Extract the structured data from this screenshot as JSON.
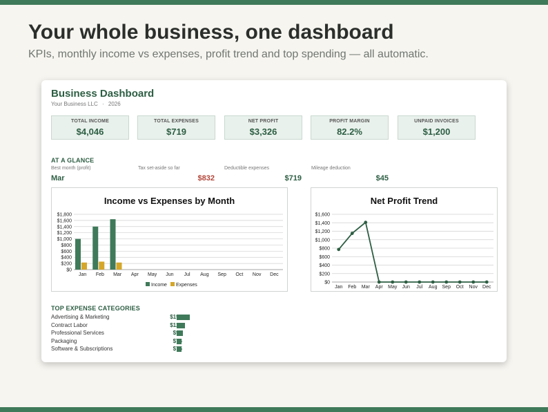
{
  "hero": {
    "headline": "Your whole business, one dashboard",
    "subheadline": "KPIs, monthly income vs expenses, profit trend and top spending — all automatic."
  },
  "dashboard": {
    "title": "Business Dashboard",
    "company": "Your Business LLC",
    "separator": "·",
    "year": "2026"
  },
  "kpis": [
    {
      "label": "TOTAL INCOME",
      "value": "$4,046"
    },
    {
      "label": "TOTAL EXPENSES",
      "value": "$719"
    },
    {
      "label": "NET PROFIT",
      "value": "$3,326"
    },
    {
      "label": "PROFIT MARGIN",
      "value": "82.2%"
    },
    {
      "label": "UNPAID INVOICES",
      "value": "$1,200"
    }
  ],
  "glance": {
    "title": "AT A GLANCE",
    "items": [
      {
        "label": "Best month (profit)",
        "value": "Mar"
      },
      {
        "label": "Tax set-aside so far",
        "value": "$832"
      },
      {
        "label": "Deductible expenses",
        "value": "$719"
      },
      {
        "label": "Mileage deduction",
        "value": "$45"
      }
    ]
  },
  "colors": {
    "accent": "#3f7a5a",
    "dark_green": "#2d5e43",
    "income": "#3f7a5a",
    "expenses": "#d4a62a",
    "tax_red": "#b2463a"
  },
  "chart_data": [
    {
      "type": "bar",
      "title": "Income vs Expenses by Month",
      "categories": [
        "Jan",
        "Feb",
        "Mar",
        "Apr",
        "May",
        "Jun",
        "Jul",
        "Aug",
        "Sep",
        "Oct",
        "Nov",
        "Dec"
      ],
      "series": [
        {
          "name": "Income",
          "values": [
            1000,
            1400,
            1640,
            0,
            0,
            0,
            0,
            0,
            0,
            0,
            0,
            0
          ]
        },
        {
          "name": "Expenses",
          "values": [
            230,
            260,
            230,
            0,
            0,
            0,
            0,
            0,
            0,
            0,
            0,
            0
          ]
        }
      ],
      "yticks": [
        "$0",
        "$200",
        "$400",
        "$600",
        "$800",
        "$1,000",
        "$1,200",
        "$1,400",
        "$1,600",
        "$1,800"
      ],
      "ylim": [
        0,
        1800
      ],
      "legend": "bottom",
      "grid": true
    },
    {
      "type": "line",
      "title": "Net Profit Trend",
      "categories": [
        "Jan",
        "Feb",
        "Mar",
        "Apr",
        "May",
        "Jun",
        "Jul",
        "Aug",
        "Sep",
        "Oct",
        "Nov",
        "Dec"
      ],
      "series": [
        {
          "values": [
            770,
            1150,
            1410,
            0,
            0,
            0,
            0,
            0,
            0,
            0,
            0,
            0
          ]
        }
      ],
      "yticks": [
        "$0",
        "$200",
        "$400",
        "$600",
        "$800",
        "$1,000",
        "$1,200",
        "$1,400",
        "$1,600"
      ],
      "ylim": [
        0,
        1600
      ],
      "grid": true
    }
  ],
  "top_expenses": {
    "title": "TOP EXPENSE CATEGORIES",
    "items": [
      {
        "name": "Advertising & Marketing",
        "amount": "$197",
        "value": 197
      },
      {
        "name": "Contract Labor",
        "amount": "$120",
        "value": 120
      },
      {
        "name": "Professional Services",
        "amount": "$95",
        "value": 95
      },
      {
        "name": "Packaging",
        "amount": "$76",
        "value": 76
      },
      {
        "name": "Software & Subscriptions",
        "amount": "$75",
        "value": 75
      }
    ]
  }
}
